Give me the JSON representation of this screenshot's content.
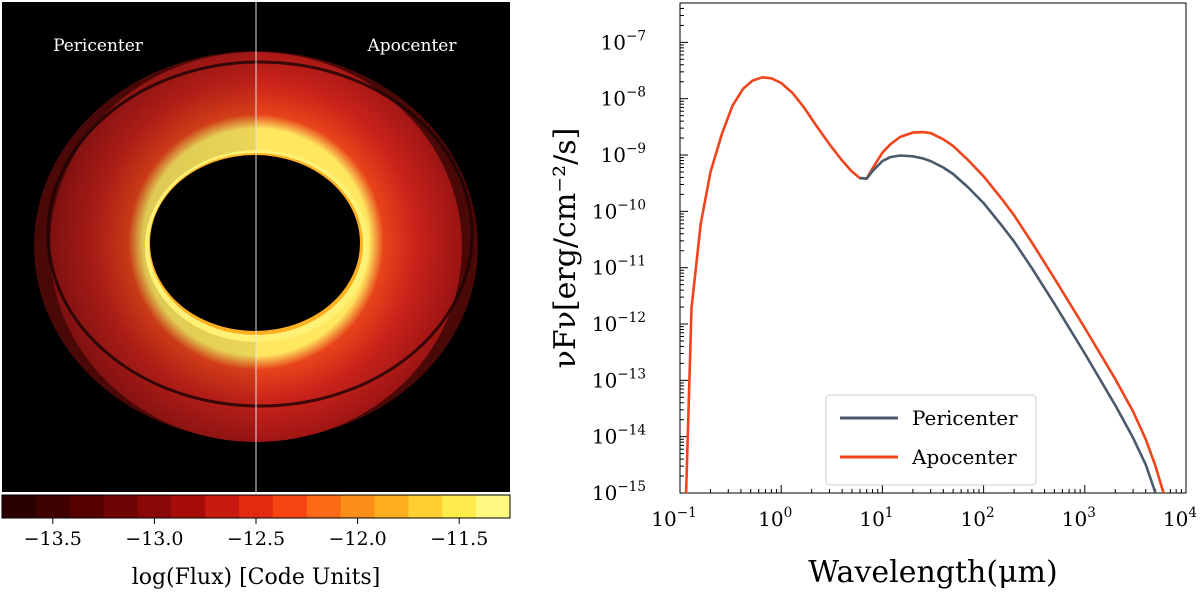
{
  "chart_data": [
    {
      "type": "heatmap",
      "title": "",
      "left_label": "Pericenter",
      "right_label": "Apocenter",
      "colorbar": {
        "label": "log(Flux) [Code Units]",
        "range": [
          -13.75,
          -11.25
        ],
        "ticks": [
          -13.5,
          -13.0,
          -12.5,
          -12.0,
          -11.5
        ],
        "tick_labels": [
          "−13.5",
          "−13.0",
          "−12.5",
          "−12.0",
          "−11.5"
        ],
        "levels": 15,
        "colormap": "hot"
      },
      "colors": {
        "background": "#000000",
        "disk": "#c8201a",
        "inner_edge": "#ffe860",
        "divider": "#e0e0e0"
      }
    },
    {
      "type": "line",
      "title": "",
      "xlabel": "Wavelength(μm)",
      "ylabel": "νFν[erg/cm⁻²/s]",
      "xscale": "log",
      "yscale": "log",
      "xlim": [
        0.1,
        10000
      ],
      "ylim": [
        1e-15,
        5e-07
      ],
      "x_ticks": [
        0.1,
        1,
        10,
        100,
        1000,
        10000
      ],
      "x_tick_labels": [
        {
          "base": "10",
          "exp": "−1"
        },
        {
          "base": "10",
          "exp": "0"
        },
        {
          "base": "10",
          "exp": "1"
        },
        {
          "base": "10",
          "exp": "2"
        },
        {
          "base": "10",
          "exp": "3"
        },
        {
          "base": "10",
          "exp": "4"
        }
      ],
      "y_ticks": [
        1e-15,
        1e-14,
        1e-13,
        1e-12,
        1e-11,
        1e-10,
        1e-09,
        1e-08,
        1e-07
      ],
      "y_tick_labels": [
        {
          "base": "10",
          "exp": "−15"
        },
        {
          "base": "10",
          "exp": "−14"
        },
        {
          "base": "10",
          "exp": "−13"
        },
        {
          "base": "10",
          "exp": "−12"
        },
        {
          "base": "10",
          "exp": "−11"
        },
        {
          "base": "10",
          "exp": "−10"
        },
        {
          "base": "10",
          "exp": "−9"
        },
        {
          "base": "10",
          "exp": "−8"
        },
        {
          "base": "10",
          "exp": "−7"
        }
      ],
      "legend": {
        "position": "lower-center"
      },
      "series": [
        {
          "name": "Apocenter",
          "color": "#f0441c",
          "x": [
            0.115,
            0.13,
            0.16,
            0.2,
            0.26,
            0.33,
            0.42,
            0.52,
            0.65,
            0.8,
            1.0,
            1.3,
            1.7,
            2.2,
            3.0,
            4.0,
            5.0,
            6.0,
            7.0,
            8.0,
            9.0,
            10,
            12,
            15,
            20,
            25,
            30,
            40,
            50,
            70,
            100,
            150,
            200,
            300,
            500,
            1000,
            2000,
            3000,
            4000,
            5000,
            6000
          ],
          "values": [
            1e-15,
            1.9e-12,
            6e-11,
            5e-10,
            2.4e-09,
            7.5e-09,
            1.5e-08,
            2.1e-08,
            2.4e-08,
            2.3e-08,
            1.9e-08,
            1.25e-08,
            6.8e-09,
            3.4e-09,
            1.55e-09,
            8e-10,
            5.1e-10,
            3.9e-10,
            3.85e-10,
            5.8e-10,
            8.2e-10,
            1.1e-09,
            1.55e-09,
            2.1e-09,
            2.5e-09,
            2.55e-09,
            2.45e-09,
            1.9e-09,
            1.45e-09,
            8.2e-10,
            4.2e-10,
            1.7e-10,
            8.5e-11,
            2.8e-11,
            6.5e-12,
            8.5e-13,
            1.05e-13,
            2.8e-14,
            9e-15,
            3e-15,
            1e-15
          ]
        },
        {
          "name": "Pericenter",
          "color": "#4b5a6b",
          "x": [
            6.0,
            7.0,
            8.0,
            10,
            12,
            15,
            20,
            25,
            30,
            40,
            50,
            70,
            100,
            150,
            200,
            300,
            500,
            1000,
            2000,
            3000,
            4000,
            5000
          ],
          "values": [
            3.9e-10,
            3.8e-10,
            5.2e-10,
            7.8e-10,
            9.2e-10,
            9.8e-10,
            9.5e-10,
            8.7e-10,
            7.8e-10,
            6e-10,
            4.6e-10,
            2.7e-10,
            1.4e-10,
            5.7e-11,
            2.9e-11,
            9.8e-12,
            2.3e-12,
            3e-13,
            3.6e-14,
            9.5e-15,
            3.2e-15,
            1e-15
          ]
        }
      ]
    }
  ]
}
